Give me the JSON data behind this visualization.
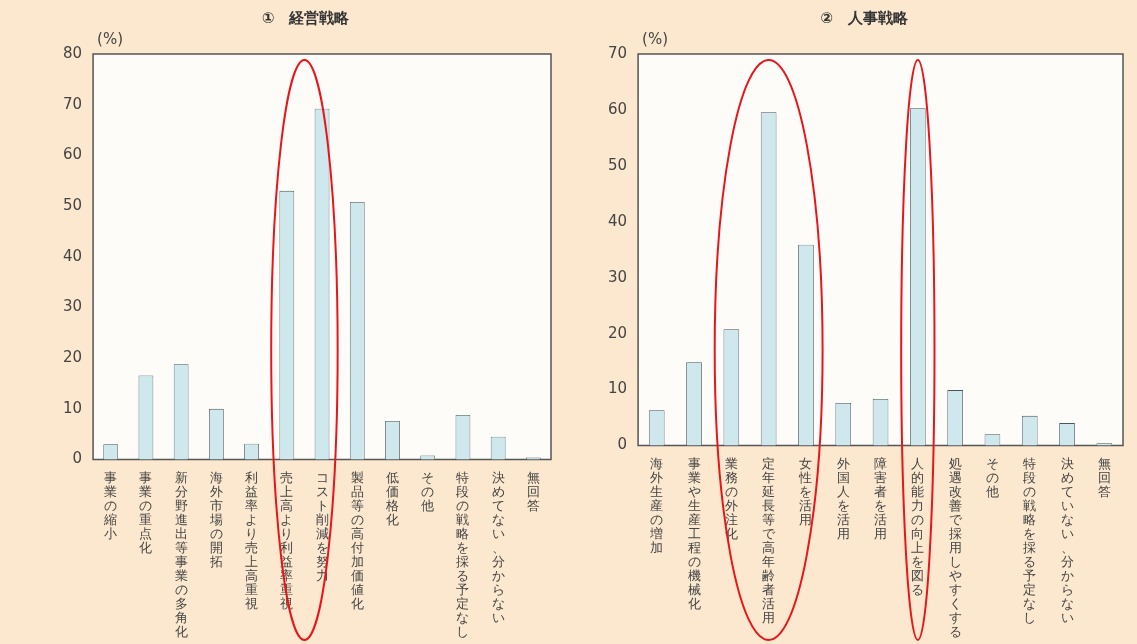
{
  "chart_data": [
    {
      "type": "bar",
      "title": "①　経営戦略",
      "ylabel": "(%)",
      "color": "#cfe8ee",
      "categories": [
        "事業の縮小",
        "事業の重点化",
        "新分野進出等事業の多角化",
        "海外市場の開拓",
        "利益率より売上高重視",
        "売上高より利益率重視",
        "コスト削減を努力",
        "製品等の高付加価値化",
        "低価格化",
        "その他",
        "特段の戦略を採る予定なし",
        "決めてない、分からない",
        "無回答"
      ],
      "values": [
        3.0,
        16.6,
        18.8,
        10,
        3.1,
        53,
        69.2,
        50.8,
        7.6,
        0.8,
        8.8,
        4.5,
        0.4
      ],
      "ylim": [
        0,
        80
      ],
      "yticks": [
        0,
        10,
        20,
        30,
        40,
        50,
        60,
        70,
        80
      ]
    },
    {
      "type": "bar",
      "title": "②　人事戦略",
      "ylabel": "(%)",
      "color": "#cfe8ee",
      "categories": [
        "海外生産の増加",
        "事業や生産工程の機械化",
        "業務の外注化",
        "定年延長等で高年齢者活用",
        "女性を活用",
        "外国人を活用",
        "障害者を活用",
        "人的能力の向上を図る",
        "処遇改善で採用しやすくする",
        "その他",
        "特段の戦略を採る予定なし",
        "決めていない、分からない",
        "無回答"
      ],
      "values": [
        6.3,
        14.9,
        20.8,
        59.6,
        35.9,
        7.6,
        8.3,
        60.3,
        9.9,
        2.0,
        5.3,
        4.0,
        0.4
      ],
      "ylim": [
        0,
        70
      ],
      "yticks": [
        0,
        10,
        20,
        30,
        40,
        50,
        60,
        70
      ]
    }
  ]
}
